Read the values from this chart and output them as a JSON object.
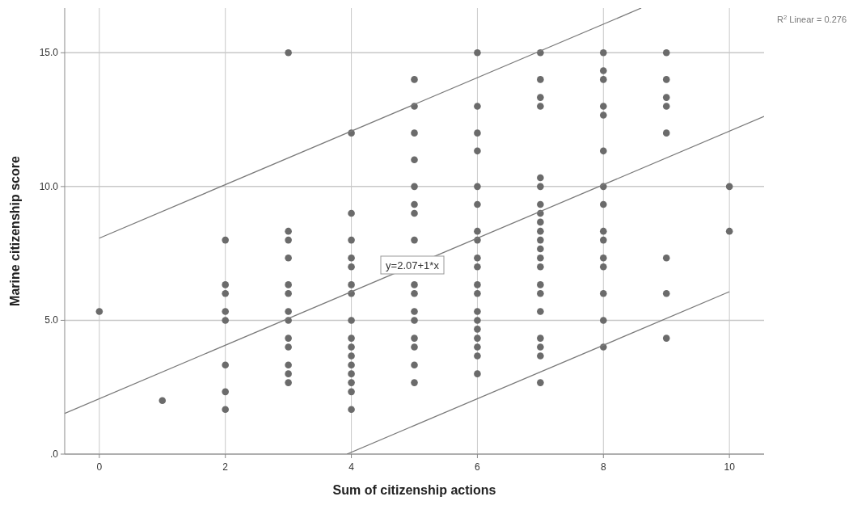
{
  "chart_data": {
    "type": "scatter",
    "xlabel": "Sum of citizenship actions",
    "ylabel": "Marine citizenship score",
    "xlim": [
      -0.55,
      10.55
    ],
    "ylim": [
      0,
      16.67
    ],
    "xticks": [
      0,
      2,
      4,
      6,
      8,
      10
    ],
    "yticks": [
      {
        "value": 0,
        "label": ".0"
      },
      {
        "value": 5,
        "label": "5.0"
      },
      {
        "value": 10,
        "label": "10.0"
      },
      {
        "value": 15,
        "label": "15.0"
      }
    ],
    "grid": true,
    "annotations": [
      "R$^{2}$ Linear = 0.276",
      "y=2.07+1*x"
    ],
    "series": [
      {
        "marker": "circle",
        "color": "#6b6b6b",
        "x": [
          0,
          1,
          2,
          2,
          2,
          2,
          2,
          2,
          2,
          2,
          3,
          3,
          3,
          3,
          3,
          3,
          3,
          3,
          3,
          3,
          3,
          3,
          3,
          4,
          4,
          4,
          4,
          4,
          4,
          4,
          4,
          4,
          4,
          4,
          4,
          4,
          4,
          4,
          4,
          5,
          5,
          5,
          5,
          5,
          5,
          5,
          5,
          5,
          5,
          5,
          5,
          5,
          5,
          5,
          5,
          6,
          6,
          6,
          6,
          6,
          6,
          6,
          6,
          6,
          6,
          6,
          6,
          6,
          6,
          6,
          6,
          6,
          6,
          6,
          7,
          7,
          7,
          7,
          7,
          7,
          7,
          7,
          7,
          7,
          7,
          7,
          7,
          7,
          7,
          7,
          7,
          7,
          7,
          7,
          7,
          8,
          8,
          8,
          8,
          8,
          8,
          8,
          8,
          8,
          8,
          8,
          8,
          8,
          8,
          8,
          9,
          9,
          9,
          9,
          9,
          9,
          9,
          9,
          10,
          10
        ],
        "values": [
          5.33,
          2,
          8,
          6.33,
          6,
          5.33,
          5,
          3.33,
          2.33,
          1.67,
          15,
          8.33,
          8,
          7.33,
          6.33,
          6,
          5.33,
          5,
          4.33,
          4,
          3.33,
          3,
          2.67,
          12,
          9,
          8,
          7.33,
          7,
          6.33,
          6,
          5,
          4.33,
          4,
          3.67,
          3.33,
          3,
          2.67,
          2.33,
          1.67,
          14,
          13,
          12,
          11,
          10,
          9.33,
          9,
          8,
          6.33,
          6,
          5.33,
          5,
          4.33,
          4,
          3.33,
          2.67,
          15,
          13,
          12,
          11.33,
          10,
          9.33,
          8.33,
          8,
          7.33,
          7,
          6.33,
          6,
          5.33,
          5,
          4.67,
          4.33,
          4,
          3.67,
          3,
          15,
          14,
          13.33,
          13,
          10.33,
          10,
          9.33,
          9,
          8.67,
          8.33,
          8,
          7.67,
          7.33,
          7,
          6.33,
          6,
          5.33,
          4.33,
          4,
          3.67,
          2.67,
          15,
          14.33,
          14,
          13,
          12.67,
          11.33,
          10,
          9.33,
          8.33,
          8,
          7.33,
          7,
          6,
          5,
          4,
          15,
          14,
          13.33,
          13,
          12,
          7.33,
          6,
          4.33,
          10,
          8.33
        ]
      },
      {
        "type": "line",
        "color": "#7a7a7a",
        "x": [
          -0.55,
          10.55
        ],
        "values": [
          1.52,
          12.62
        ]
      },
      {
        "type": "line",
        "color": "#7a7a7a",
        "x": [
          0,
          8.6
        ],
        "values": [
          8.07,
          16.67
        ]
      },
      {
        "type": "line",
        "color": "#7a7a7a",
        "x": [
          3.93,
          10
        ],
        "values": [
          0,
          6.07
        ]
      }
    ]
  }
}
